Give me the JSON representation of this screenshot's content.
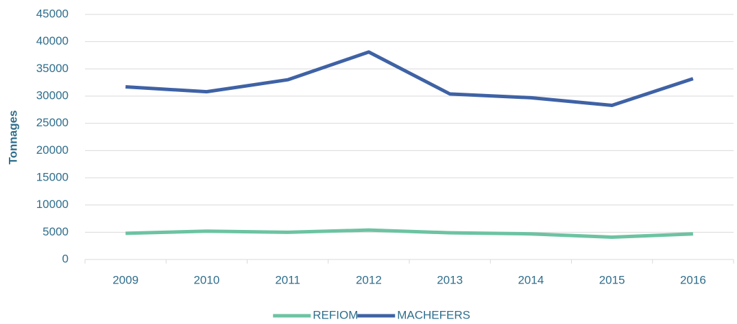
{
  "chart_data": {
    "type": "line",
    "ylabel": "Tonnages",
    "categories": [
      "2009",
      "2010",
      "2011",
      "2012",
      "2013",
      "2014",
      "2015",
      "2016"
    ],
    "series": [
      {
        "name": "REFIOM",
        "color": "#6cc3a2",
        "values": [
          4800,
          5200,
          5000,
          5400,
          4900,
          4700,
          4100,
          4700
        ]
      },
      {
        "name": "MACHEFERS",
        "color": "#3f62a5",
        "values": [
          31700,
          30800,
          33000,
          38100,
          30400,
          29700,
          28300,
          33200
        ]
      }
    ],
    "ylim": [
      0,
      45000
    ],
    "yticks": [
      0,
      5000,
      10000,
      15000,
      20000,
      25000,
      30000,
      35000,
      40000,
      45000
    ],
    "grid": true,
    "legend": "bottom"
  }
}
